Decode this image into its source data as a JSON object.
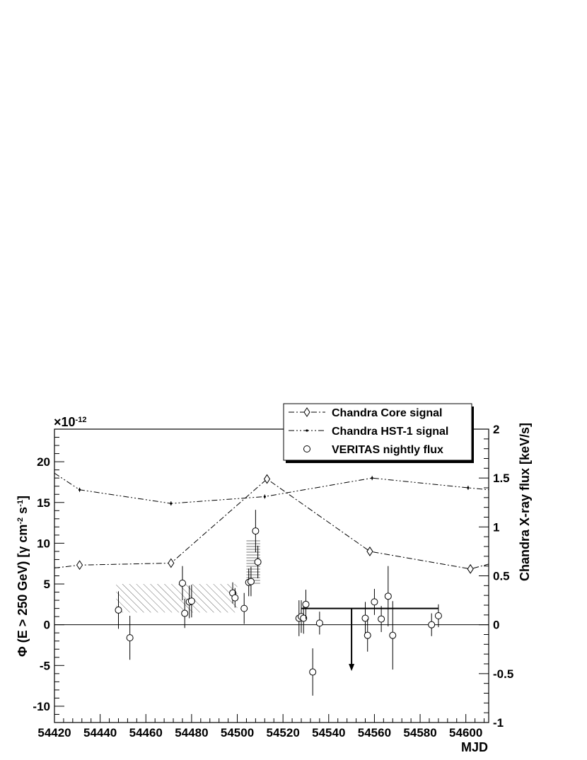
{
  "chart_data": {
    "type": "scatter",
    "xlabel": "MJD",
    "ylabel": "Φ (E > 250 GeV) [γ cm⁻² s⁻¹]",
    "ylabel_right": "Chandra X-ray flux [keV/s]",
    "exponent_label": "×10⁻¹²",
    "xlim": [
      54420,
      54610
    ],
    "ylim": [
      -12,
      24
    ],
    "ylim_right": [
      -1,
      2
    ],
    "x_ticks": [
      54420,
      54440,
      54460,
      54480,
      54500,
      54520,
      54540,
      54560,
      54580,
      54600
    ],
    "x_tick_labels": [
      "54420",
      "54440",
      "54460",
      "54480",
      "54500",
      "54520",
      "54540",
      "54560",
      "54580",
      "54600"
    ],
    "y_ticks": [
      -10,
      -5,
      0,
      5,
      10,
      15,
      20
    ],
    "y_tick_labels": [
      "-10",
      "-5",
      "0",
      "5",
      "10",
      "15",
      "20"
    ],
    "y_right_ticks": [
      -1,
      -0.5,
      0,
      0.5,
      1,
      1.5,
      2
    ],
    "y_right_tick_labels": [
      "-1",
      "-0.5",
      "0",
      "0.5",
      "1",
      "1.5",
      "2"
    ],
    "zero_line": true,
    "grid": false,
    "legend_position": "top-right",
    "legend": [
      {
        "label": "Chandra Core signal",
        "marker": "diamond",
        "line": "dash-dot"
      },
      {
        "label": "Chandra HST-1 signal",
        "marker": "dot",
        "line": "dash-dot-dot"
      },
      {
        "label": "VERITAS nightly flux",
        "marker": "circle",
        "line": "none"
      }
    ],
    "series": [
      {
        "name": "VERITAS nightly flux",
        "axis": "left",
        "x": [
          54448,
          54453,
          54476,
          54477,
          54479,
          54480,
          54498,
          54499,
          54503,
          54505,
          54506,
          54508,
          54509,
          54527,
          54528,
          54529,
          54530,
          54533,
          54536,
          54556,
          54557,
          54560,
          54563,
          54566,
          54568,
          54585,
          54588
        ],
        "y": [
          1.8,
          -1.6,
          5.1,
          1.4,
          2.8,
          2.9,
          3.9,
          3.3,
          2.0,
          5.2,
          5.3,
          11.5,
          7.7,
          0.8,
          1.0,
          0.8,
          2.5,
          -5.8,
          0.2,
          0.8,
          -1.3,
          2.8,
          0.7,
          3.5,
          -1.3,
          0.0,
          1.1
        ],
        "y_err": [
          2.3,
          2.7,
          2.1,
          1.8,
          2.0,
          2.0,
          1.3,
          1.2,
          1.9,
          1.7,
          1.8,
          2.6,
          2.0,
          2.2,
          2.0,
          1.9,
          1.8,
          2.9,
          1.4,
          2.0,
          2.0,
          1.6,
          1.6,
          3.7,
          4.2,
          1.4,
          1.4
        ]
      },
      {
        "name": "Chandra Core signal",
        "axis": "right",
        "x": [
          54420,
          54431,
          54471,
          54513,
          54558,
          54602,
          54610
        ],
        "y": [
          0.58,
          0.61,
          0.63,
          1.49,
          0.75,
          0.57,
          0.62
        ]
      },
      {
        "name": "Chandra HST-1 signal",
        "axis": "right",
        "x": [
          54420,
          54431,
          54471,
          54512,
          54559,
          54601,
          54610
        ],
        "y": [
          1.55,
          1.38,
          1.24,
          1.31,
          1.5,
          1.4,
          1.38
        ]
      }
    ],
    "upper_limit": {
      "x_from": 54528,
      "x_to": 54588,
      "y": 2.0,
      "arrow_x": 54550,
      "arrow_to": -5.5
    },
    "shaded_boxes": [
      {
        "pattern": "diagonal",
        "x_from": 54447,
        "x_to": 54500,
        "y_from": 1.5,
        "y_to": 5.0
      },
      {
        "pattern": "horizontal",
        "x_from": 54504,
        "x_to": 54510,
        "y_from": 4.8,
        "y_to": 10.5
      }
    ]
  }
}
